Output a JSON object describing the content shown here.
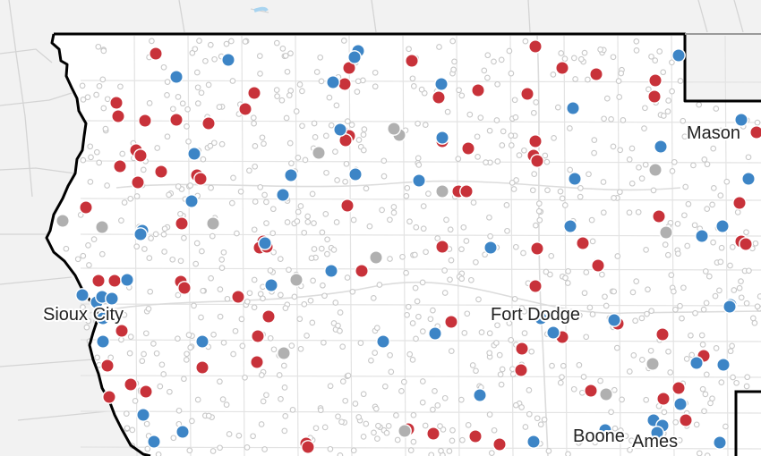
{
  "map": {
    "cities": [
      {
        "id": "sioux-city",
        "name": "Sioux City"
      },
      {
        "id": "fort-dodge",
        "name": "Fort Dodge"
      },
      {
        "id": "mason-city",
        "name": "Mason"
      },
      {
        "id": "boone",
        "name": "Boone"
      },
      {
        "id": "ames",
        "name": "Ames"
      }
    ],
    "colors": {
      "background": "#f2f2f2",
      "state_fill": "#ffffff",
      "state_border": "#000000",
      "roads": "#d4d4d4",
      "precinct_outline": "#c8c8c8",
      "marker_red": "#c8323a",
      "marker_blue": "#3d85c6",
      "marker_gray": "#b0b0b0"
    },
    "marker_categories": [
      "red",
      "blue",
      "gray"
    ]
  }
}
